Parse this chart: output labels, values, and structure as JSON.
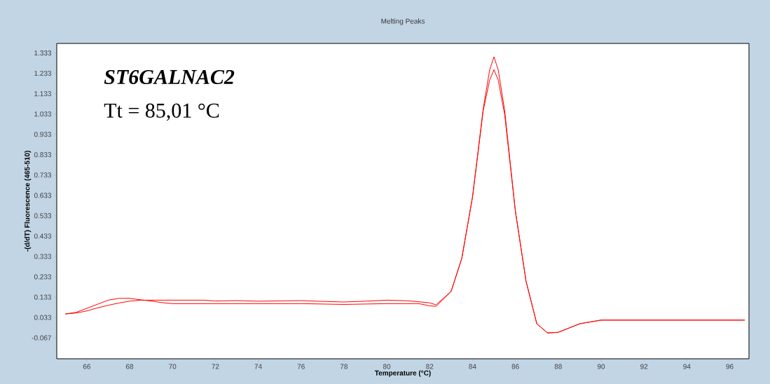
{
  "chart_data": {
    "type": "line",
    "title": "Melting Peaks",
    "xlabel": "Temperature (°C)",
    "ylabel": "-(d/dT) Fluorescence (465-510)",
    "annotations": [
      "ST6GALNAC2",
      "Tt = 85,01 °C"
    ],
    "xlim": [
      64.6,
      96.9
    ],
    "ylim": [
      -0.17,
      1.38
    ],
    "xticks": [
      66,
      68,
      70,
      72,
      74,
      76,
      78,
      80,
      82,
      84,
      86,
      88,
      90,
      92,
      94,
      96
    ],
    "yticks": [
      -0.067,
      0.033,
      0.133,
      0.233,
      0.333,
      0.433,
      0.533,
      0.633,
      0.733,
      0.833,
      0.933,
      1.033,
      1.133,
      1.233,
      1.333
    ],
    "series": [
      {
        "color": "#ff0000",
        "x": [
          65,
          65.5,
          66,
          66.5,
          67,
          67.5,
          68,
          68.5,
          69,
          69.5,
          70,
          72,
          74,
          76,
          78,
          80,
          81.5,
          82,
          82.3,
          83,
          83.5,
          84,
          84.5,
          84.8,
          85,
          85.2,
          85.5,
          86,
          86.5,
          87,
          87.5,
          88,
          89,
          90,
          92,
          94,
          96.7
        ],
        "values": [
          0.05,
          0.058,
          0.078,
          0.098,
          0.118,
          0.127,
          0.127,
          0.12,
          0.114,
          0.106,
          0.101,
          0.101,
          0.101,
          0.101,
          0.097,
          0.101,
          0.101,
          0.09,
          0.088,
          0.161,
          0.324,
          0.625,
          1.06,
          1.25,
          1.314,
          1.25,
          1.05,
          0.556,
          0.21,
          0.002,
          -0.043,
          -0.04,
          0.002,
          0.02,
          0.02,
          0.02,
          0.02
        ]
      },
      {
        "color": "#ff0000",
        "x": [
          65,
          65.5,
          66,
          66.5,
          67,
          67.5,
          68,
          68.5,
          70,
          71.5,
          72,
          73,
          74,
          76,
          77,
          78,
          79,
          80,
          81,
          82,
          82.3,
          83,
          83.5,
          84,
          84.5,
          84.8,
          85,
          85.2,
          85.5,
          86,
          86.5,
          87,
          87.5,
          88,
          89,
          90,
          92,
          94,
          96.7
        ],
        "values": [
          0.05,
          0.055,
          0.065,
          0.08,
          0.093,
          0.104,
          0.113,
          0.118,
          0.118,
          0.118,
          0.114,
          0.116,
          0.113,
          0.116,
          0.112,
          0.109,
          0.113,
          0.118,
          0.115,
          0.105,
          0.095,
          0.161,
          0.324,
          0.625,
          1.05,
          1.2,
          1.251,
          1.2,
          1.03,
          0.556,
          0.21,
          0.002,
          -0.043,
          -0.04,
          0.002,
          0.02,
          0.02,
          0.02,
          0.02
        ]
      }
    ]
  }
}
